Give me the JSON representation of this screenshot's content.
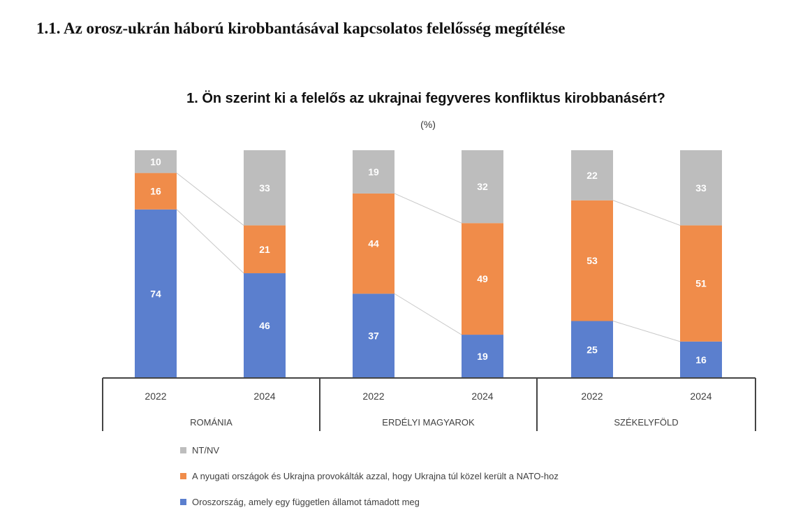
{
  "heading": "1.1. Az orosz-ukrán háború kirobbantásával kapcsolatos felelősség megítélése",
  "chart_data": {
    "type": "bar",
    "stacked": true,
    "normalized_percent": true,
    "title": "1.  Ön szerint ki a felelős az ukrajnai fegyveres konfliktus kirobbanásért?",
    "subtitle": "(%)",
    "groups": [
      {
        "label": "ROMÁNIA",
        "categories": [
          "2022",
          "2024"
        ]
      },
      {
        "label": "ERDÉLYI MAGYAROK",
        "categories": [
          "2022",
          "2024"
        ]
      },
      {
        "label": "SZÉKELYFÖLD",
        "categories": [
          "2022",
          "2024"
        ]
      }
    ],
    "categories": [
      "2022",
      "2024",
      "2022",
      "2024",
      "2022",
      "2024"
    ],
    "series": [
      {
        "name": "Oroszország, amely egy független államot támadott meg",
        "color": "#5b7fce",
        "values": [
          74,
          46,
          37,
          19,
          25,
          16
        ]
      },
      {
        "name": "A nyugati országok és Ukrajna provokálták azzal, hogy Ukrajna túl közel került a NATO-hoz",
        "color": "#f08c4a",
        "values": [
          16,
          21,
          44,
          49,
          53,
          51
        ]
      },
      {
        "name": "NT/NV",
        "color": "#bdbdbd",
        "values": [
          10,
          33,
          19,
          32,
          22,
          33
        ]
      }
    ],
    "legend_order": [
      "NT/NV",
      "A nyugati országok és Ukrajna provokálták azzal, hogy Ukrajna túl közel került a NATO-hoz",
      "Oroszország, amely egy független államot támadott meg"
    ],
    "legend_position": "bottom",
    "series_lines": true,
    "grid": false
  }
}
